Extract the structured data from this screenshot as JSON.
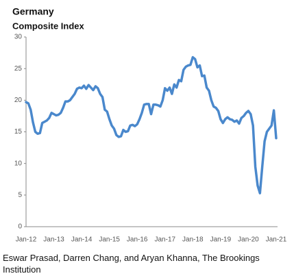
{
  "chart_data": {
    "type": "line",
    "title": "Germany",
    "subtitle": "Composite Index",
    "caption": "Eswar Prasad, Darren Chang, and Aryan Khanna, The Brookings Institution",
    "categories": [
      "Jan-12",
      null,
      null,
      null,
      null,
      null,
      null,
      null,
      null,
      null,
      null,
      null,
      "Jan-13",
      null,
      null,
      null,
      null,
      null,
      null,
      null,
      null,
      null,
      null,
      null,
      "Jan-14",
      null,
      null,
      null,
      null,
      null,
      null,
      null,
      null,
      null,
      null,
      null,
      "Jan-15",
      null,
      null,
      null,
      null,
      null,
      null,
      null,
      null,
      null,
      null,
      null,
      "Jan-16",
      null,
      null,
      null,
      null,
      null,
      null,
      null,
      null,
      null,
      null,
      null,
      "Jan-17",
      null,
      null,
      null,
      null,
      null,
      null,
      null,
      null,
      null,
      null,
      null,
      "Jan-18",
      null,
      null,
      null,
      null,
      null,
      null,
      null,
      null,
      null,
      null,
      null,
      "Jan-19",
      null,
      null,
      null,
      null,
      null,
      null,
      null,
      null,
      null,
      null,
      null,
      "Jan-20",
      null,
      null,
      null,
      null,
      null,
      null,
      null,
      null,
      null,
      null,
      null,
      "Jan-21"
    ],
    "series": [
      {
        "color": "#4a88cc",
        "values": [
          19.7,
          19.5,
          18.5,
          16.5,
          15.0,
          14.7,
          14.8,
          16.4,
          16.6,
          16.8,
          17.2,
          18.0,
          17.8,
          17.6,
          17.7,
          18.0,
          18.8,
          19.8,
          19.8,
          20.0,
          20.5,
          21.0,
          21.8,
          22.0,
          21.9,
          22.3,
          21.8,
          22.4,
          22.0,
          21.6,
          22.2,
          21.9,
          21.0,
          20.5,
          18.5,
          18.2,
          17.0,
          16.0,
          15.5,
          14.5,
          14.2,
          14.3,
          15.3,
          15.0,
          15.1,
          16.0,
          16.1,
          15.9,
          16.2,
          17.0,
          18.0,
          19.3,
          19.4,
          19.4,
          17.8,
          19.3,
          19.3,
          19.2,
          19.0,
          20.0,
          21.9,
          21.5,
          22.0,
          21.0,
          22.5,
          22.0,
          23.2,
          23.0,
          24.8,
          25.3,
          25.5,
          25.6,
          26.8,
          26.5,
          25.2,
          25.5,
          23.8,
          23.9,
          22.0,
          21.5,
          20.0,
          19.0,
          18.8,
          18.3,
          17.0,
          16.4,
          17.0,
          17.3,
          17.0,
          16.9,
          16.6,
          16.8,
          16.3,
          17.2,
          17.5,
          18.0,
          18.3,
          17.8,
          16.0,
          9.5,
          6.5,
          5.3,
          9.5,
          13.5,
          15.0,
          15.5,
          16.0,
          18.4,
          14.0
        ]
      }
    ],
    "ylim": [
      0,
      30
    ],
    "yticks": [
      0,
      5,
      10,
      15,
      20,
      25,
      30
    ],
    "grid": false
  }
}
